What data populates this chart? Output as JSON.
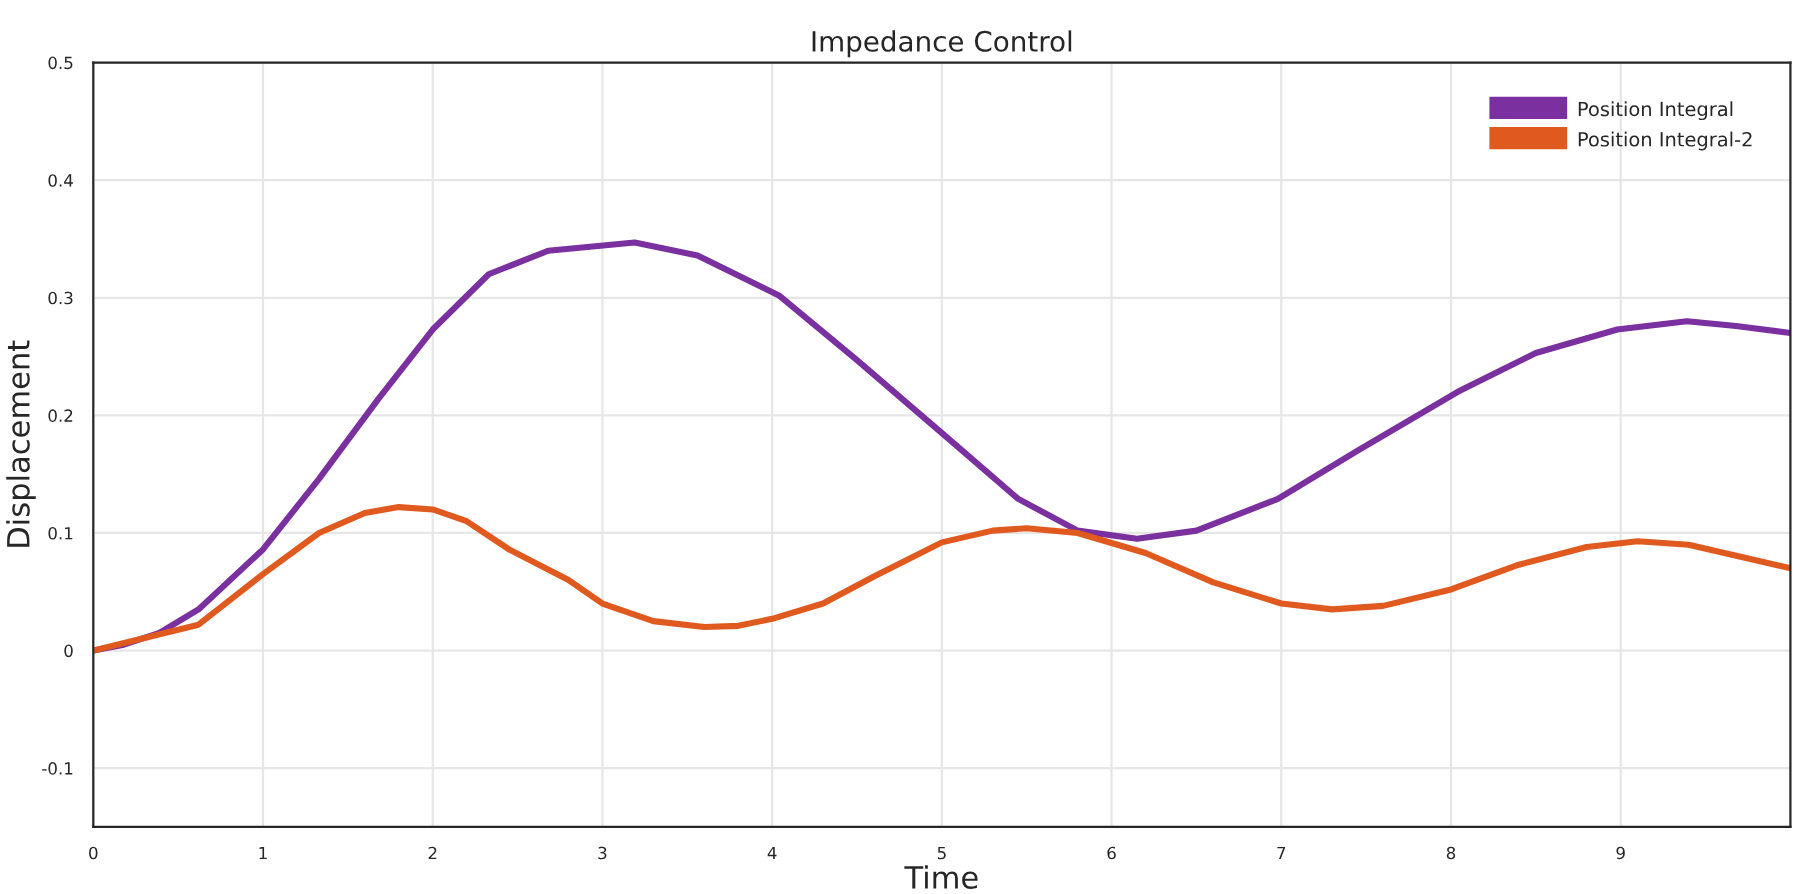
{
  "chart_data": {
    "type": "line",
    "title": "Impedance Control",
    "xlabel": "Time",
    "ylabel": "Displacement",
    "xlim": [
      0,
      10
    ],
    "xticks": [
      0,
      1,
      2,
      3,
      4,
      5,
      6,
      7,
      8,
      9
    ],
    "ylim": [
      -0.15,
      0.5
    ],
    "yticks": [
      -0.1,
      0,
      0.1,
      0.2,
      0.3,
      0.4,
      0.5
    ],
    "grid": true,
    "legend": "top right",
    "series": [
      {
        "name": "Position Integral",
        "color": "#7b30a0",
        "x": [
          0,
          0.18,
          0.39,
          0.62,
          1,
          1.33,
          1.68,
          2,
          2.33,
          2.68,
          3.19,
          3.56,
          4.04,
          4.5,
          5.04,
          5.45,
          5.8,
          6.15,
          6.5,
          6.98,
          7.45,
          8.04,
          8.5,
          8.98,
          9.39,
          9.68,
          10
        ],
        "values": [
          0,
          0.005,
          0.015,
          0.035,
          0.086,
          0.146,
          0.214,
          0.273,
          0.32,
          0.34,
          0.347,
          0.336,
          0.302,
          0.247,
          0.18,
          0.129,
          0.102,
          0.095,
          0.102,
          0.129,
          0.17,
          0.22,
          0.253,
          0.273,
          0.28,
          0.276,
          0.27
        ]
      },
      {
        "name": "Position Integral-2",
        "color": "#e05a20",
        "x": [
          0,
          0.62,
          1,
          1.33,
          1.6,
          1.8,
          2,
          2.2,
          2.45,
          2.8,
          3,
          3.3,
          3.6,
          3.8,
          4,
          4.3,
          4.6,
          5,
          5.3,
          5.5,
          5.8,
          6.2,
          6.6,
          7,
          7.3,
          7.6,
          8,
          8.4,
          8.8,
          9.1,
          9.4,
          9.7,
          10
        ],
        "values": [
          0,
          0.022,
          0.065,
          0.1,
          0.117,
          0.122,
          0.12,
          0.11,
          0.086,
          0.06,
          0.04,
          0.025,
          0.02,
          0.021,
          0.027,
          0.04,
          0.063,
          0.092,
          0.102,
          0.104,
          0.1,
          0.083,
          0.058,
          0.04,
          0.035,
          0.038,
          0.052,
          0.073,
          0.088,
          0.093,
          0.09,
          0.08,
          0.07
        ]
      }
    ]
  }
}
